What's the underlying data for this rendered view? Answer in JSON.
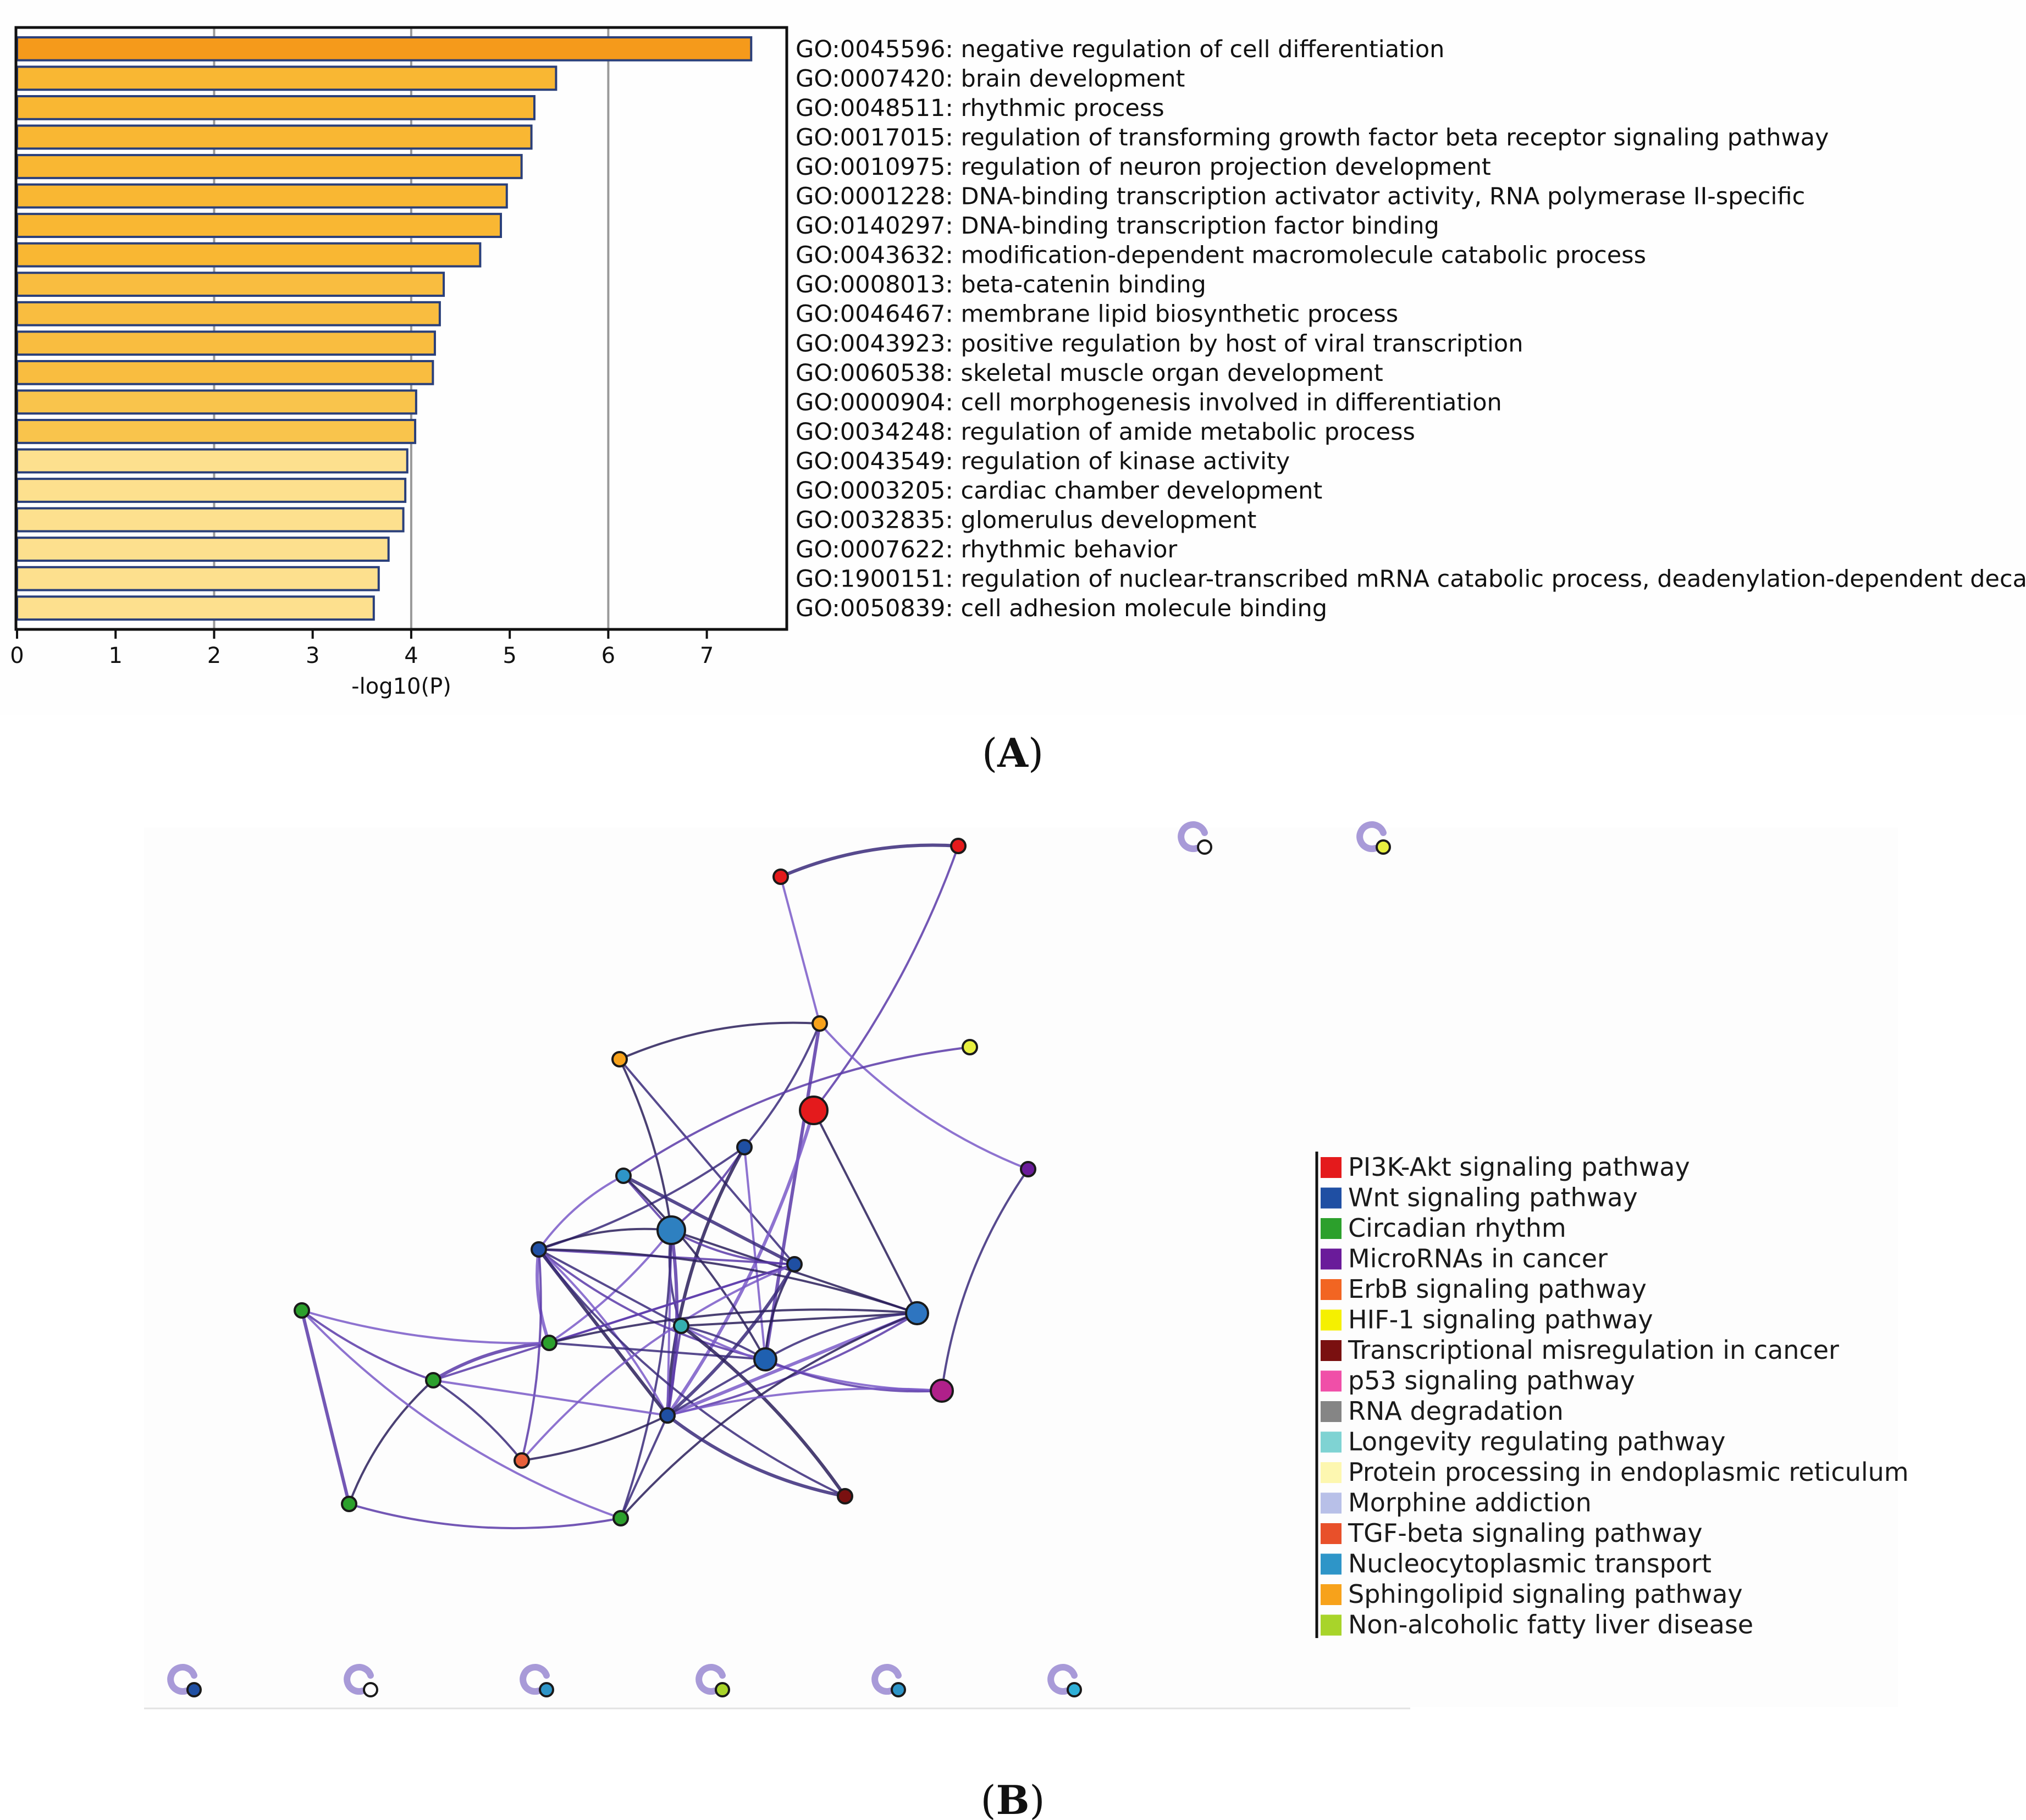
{
  "chart_data": [
    {
      "type": "bar",
      "orientation": "horizontal",
      "xlabel": "-log10(P)",
      "xlim": [
        0,
        7.8
      ],
      "xticks": [
        0,
        1,
        2,
        3,
        4,
        5,
        6,
        7
      ],
      "gridlines_at": [
        2,
        4,
        6
      ],
      "categories": [
        "GO:0045596: negative regulation of cell differentiation",
        "GO:0007420: brain development",
        "GO:0048511: rhythmic process",
        "GO:0017015: regulation of transforming growth factor beta receptor signaling pathway",
        "GO:0010975: regulation of neuron projection development",
        "GO:0001228: DNA-binding transcription activator activity, RNA polymerase II-specific",
        "GO:0140297: DNA-binding transcription factor binding",
        "GO:0043632: modification-dependent macromolecule catabolic process",
        "GO:0008013: beta-catenin binding",
        "GO:0046467: membrane lipid biosynthetic process",
        "GO:0043923: positive regulation by host of viral transcription",
        "GO:0060538: skeletal muscle organ development",
        "GO:0000904: cell morphogenesis involved in differentiation",
        "GO:0034248: regulation of amide metabolic process",
        "GO:0043549: regulation of kinase activity",
        "GO:0003205: cardiac chamber development",
        "GO:0032835: glomerulus development",
        "GO:0007622: rhythmic behavior",
        "GO:1900151: regulation of nuclear-transcribed mRNA catabolic process, deadenylation-dependent decay",
        "GO:0050839: cell adhesion molecule binding"
      ],
      "values": [
        7.45,
        5.47,
        5.25,
        5.22,
        5.12,
        4.97,
        4.91,
        4.7,
        4.33,
        4.29,
        4.24,
        4.22,
        4.05,
        4.04,
        3.96,
        3.94,
        3.92,
        3.77,
        3.67,
        3.62
      ],
      "bar_colors": [
        "#f59a1b",
        "#f9b733",
        "#f9b733",
        "#f9b733",
        "#f9b733",
        "#f9b733",
        "#f9b733",
        "#f9b733",
        "#f9bd40",
        "#f9bd40",
        "#f9bd40",
        "#f9bd40",
        "#f9c44c",
        "#f9c44c",
        "#fde08e",
        "#fde08e",
        "#fde08e",
        "#fde08e",
        "#fde08e",
        "#fde08e"
      ],
      "bar_edge_color": "#2a3f7a"
    },
    {
      "type": "network",
      "legend_title": "",
      "legend": [
        {
          "label": "PI3K-Akt signaling pathway",
          "color": "#e41a1c"
        },
        {
          "label": "Wnt signaling pathway",
          "color": "#1f4fa3"
        },
        {
          "label": "Circadian rhythm",
          "color": "#2ca02c"
        },
        {
          "label": "MicroRNAs in cancer",
          "color": "#6a1b9a"
        },
        {
          "label": "ErbB signaling pathway",
          "color": "#f26522"
        },
        {
          "label": "HIF-1 signaling pathway",
          "color": "#f5f000"
        },
        {
          "label": "Transcriptional misregulation in cancer",
          "color": "#7a1010"
        },
        {
          "label": "p53 signaling pathway",
          "color": "#f04fa8"
        },
        {
          "label": "RNA degradation",
          "color": "#858585"
        },
        {
          "label": "Longevity regulating pathway",
          "color": "#7fd3d3"
        },
        {
          "label": "Protein processing in endoplasmic reticulum",
          "color": "#fdf7b0"
        },
        {
          "label": "Morphine addiction",
          "color": "#b8c0e8"
        },
        {
          "label": "TGF-beta signaling pathway",
          "color": "#e8502a"
        },
        {
          "label": "Nucleocytoplasmic transport",
          "color": "#2e95c8"
        },
        {
          "label": "Sphingolipid signaling pathway",
          "color": "#f7a21b"
        },
        {
          "label": "Non-alcoholic fatty liver disease",
          "color": "#a8d42a"
        }
      ],
      "nodes": [
        {
          "id": "n1",
          "color": "#e41a1c",
          "size": "small"
        },
        {
          "id": "n2",
          "color": "#e41a1c",
          "size": "small"
        },
        {
          "id": "n3",
          "color": "#f7a21b",
          "size": "small"
        },
        {
          "id": "n4",
          "color": "#f7a21b",
          "size": "small"
        },
        {
          "id": "n5",
          "color": "#e8f040",
          "size": "small"
        },
        {
          "id": "n6",
          "color": "#e41a1c",
          "size": "large"
        },
        {
          "id": "n7",
          "color": "#6a1b9a",
          "size": "small"
        },
        {
          "id": "n8",
          "color": "#1f4fa3",
          "size": "small"
        },
        {
          "id": "n9",
          "color": "#2e95c8",
          "size": "small"
        },
        {
          "id": "n10",
          "color": "#2e80c0",
          "size": "large"
        },
        {
          "id": "n11",
          "color": "#1f4fa3",
          "size": "small"
        },
        {
          "id": "n12",
          "color": "#1f4fa3",
          "size": "small"
        },
        {
          "id": "n13",
          "color": "#2ca02c",
          "size": "small"
        },
        {
          "id": "n14",
          "color": "#2e75c0",
          "size": "medium"
        },
        {
          "id": "n15",
          "color": "#35b0b0",
          "size": "small"
        },
        {
          "id": "n16",
          "color": "#1f60b0",
          "size": "medium"
        },
        {
          "id": "n17",
          "color": "#1f4fa3",
          "size": "small"
        },
        {
          "id": "n18",
          "color": "#2ca02c",
          "size": "small"
        },
        {
          "id": "n19",
          "color": "#b0208a",
          "size": "medium"
        },
        {
          "id": "n20",
          "color": "#2ca02c",
          "size": "small"
        },
        {
          "id": "n21",
          "color": "#1f4fa3",
          "size": "small"
        },
        {
          "id": "n22",
          "color": "#e8603a",
          "size": "small"
        },
        {
          "id": "n23",
          "color": "#2ca02c",
          "size": "small"
        },
        {
          "id": "n24",
          "color": "#2ca02c",
          "size": "small"
        },
        {
          "id": "n25",
          "color": "#7a1010",
          "size": "small"
        }
      ],
      "edges": [
        [
          "n1",
          "n2"
        ],
        [
          "n1",
          "n6"
        ],
        [
          "n2",
          "n4"
        ],
        [
          "n4",
          "n3"
        ],
        [
          "n4",
          "n8"
        ],
        [
          "n4",
          "n16"
        ],
        [
          "n4",
          "n7"
        ],
        [
          "n3",
          "n10"
        ],
        [
          "n3",
          "n12"
        ],
        [
          "n5",
          "n9"
        ],
        [
          "n6",
          "n21"
        ],
        [
          "n6",
          "n14"
        ],
        [
          "n7",
          "n19"
        ],
        [
          "n8",
          "n10"
        ],
        [
          "n8",
          "n16"
        ],
        [
          "n8",
          "n21"
        ],
        [
          "n8",
          "n11"
        ],
        [
          "n9",
          "n10"
        ],
        [
          "n9",
          "n11"
        ],
        [
          "n9",
          "n16"
        ],
        [
          "n9",
          "n12"
        ],
        [
          "n10",
          "n12"
        ],
        [
          "n10",
          "n13"
        ],
        [
          "n10",
          "n14"
        ],
        [
          "n10",
          "n15"
        ],
        [
          "n10",
          "n17"
        ],
        [
          "n10",
          "n21"
        ],
        [
          "n10",
          "n11"
        ],
        [
          "n10",
          "n24"
        ],
        [
          "n11",
          "n12"
        ],
        [
          "n11",
          "n13"
        ],
        [
          "n11",
          "n14"
        ],
        [
          "n11",
          "n15"
        ],
        [
          "n11",
          "n16"
        ],
        [
          "n11",
          "n17"
        ],
        [
          "n11",
          "n21"
        ],
        [
          "n11",
          "n25"
        ],
        [
          "n11",
          "n22"
        ],
        [
          "n12",
          "n13"
        ],
        [
          "n12",
          "n16"
        ],
        [
          "n12",
          "n17"
        ],
        [
          "n12",
          "n18"
        ],
        [
          "n12",
          "n22"
        ],
        [
          "n13",
          "n14"
        ],
        [
          "n13",
          "n16"
        ],
        [
          "n13",
          "n18"
        ],
        [
          "n13",
          "n20"
        ],
        [
          "n14",
          "n15"
        ],
        [
          "n14",
          "n16"
        ],
        [
          "n14",
          "n17"
        ],
        [
          "n14",
          "n21"
        ],
        [
          "n14",
          "n24"
        ],
        [
          "n15",
          "n16"
        ],
        [
          "n15",
          "n17"
        ],
        [
          "n15",
          "n19"
        ],
        [
          "n15",
          "n25"
        ],
        [
          "n16",
          "n17"
        ],
        [
          "n16",
          "n19"
        ],
        [
          "n17",
          "n19"
        ],
        [
          "n17",
          "n21"
        ],
        [
          "n17",
          "n25"
        ],
        [
          "n18",
          "n20"
        ],
        [
          "n18",
          "n21"
        ],
        [
          "n18",
          "n23"
        ],
        [
          "n18",
          "n22"
        ],
        [
          "n20",
          "n23"
        ],
        [
          "n20",
          "n24"
        ],
        [
          "n21",
          "n22"
        ],
        [
          "n21",
          "n24"
        ],
        [
          "n23",
          "n24"
        ]
      ],
      "isolated_nodes": [
        {
          "id": "i1",
          "color": "#ffffff"
        },
        {
          "id": "i2",
          "color": "#e8f040"
        },
        {
          "id": "i3",
          "color": "#1f4fa3"
        },
        {
          "id": "i4",
          "color": "#ffffff"
        },
        {
          "id": "i5",
          "color": "#2e95c8"
        },
        {
          "id": "i6",
          "color": "#a8d42a"
        },
        {
          "id": "i7",
          "color": "#2e95c8"
        },
        {
          "id": "i8",
          "color": "#2eb0d8"
        }
      ]
    }
  ],
  "panels": {
    "a": {
      "open": "(",
      "letter": "A",
      "close": ")"
    },
    "b": {
      "open": "(",
      "letter": "B",
      "close": ")"
    }
  }
}
